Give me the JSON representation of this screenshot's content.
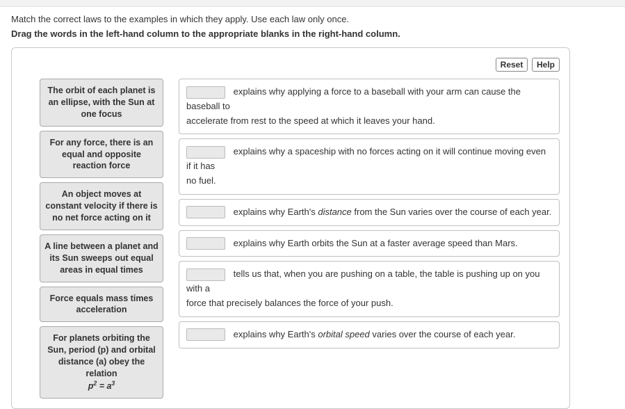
{
  "prompt": {
    "line1": "Match the correct laws to the examples in which they apply. Use each law only once.",
    "line2": "Drag the words in the left-hand column to the appropriate blanks in the right-hand column."
  },
  "toolbar": {
    "reset_label": "Reset",
    "help_label": "Help"
  },
  "draggables": [
    "The orbit of each planet is an ellipse, with the Sun at one focus",
    "For any force, there is an equal and opposite reaction force",
    "An object moves at constant velocity if there is no net force acting on it",
    "A line between a planet and its Sun sweeps out equal areas in equal times",
    "Force equals mass times acceleration"
  ],
  "draggable_last": {
    "line1": "For planets orbiting the Sun, period (p) and orbital distance (a) obey the relation",
    "formula_html": "p<sup>2</sup> = a<sup>3</sup>"
  },
  "targets": {
    "r1_a": "explains why applying a force to a baseball with your arm can cause the baseball to",
    "r1_b": "accelerate from rest to the speed at which it leaves your hand.",
    "r2_a": "explains why a spaceship with no forces acting on it will continue moving even if it has",
    "r2_b": "no fuel.",
    "r3_a": "explains why Earth's ",
    "r3_ital": "distance",
    "r3_b": " from the Sun varies over the course of each year.",
    "r4": "explains why Earth orbits the Sun at a faster average speed than Mars.",
    "r5_a": "tells us that, when you are pushing on a table, the table is pushing up on you with a",
    "r5_b": "force that precisely balances the force of your push.",
    "r6_a": "explains why Earth's ",
    "r6_ital": "orbital speed",
    "r6_b": " varies over the course of each year."
  }
}
